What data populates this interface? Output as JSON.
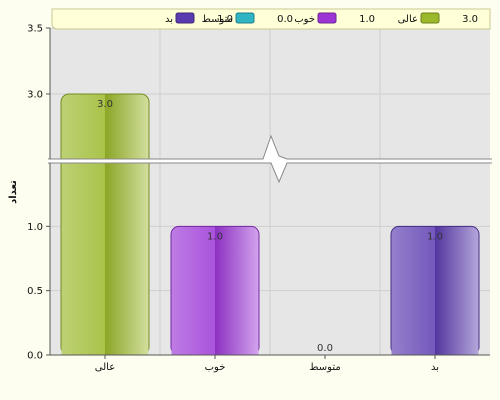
{
  "chart_data": {
    "type": "bar",
    "title": "",
    "xlabel": "",
    "ylabel": "تعداد",
    "categories": [
      "عالی",
      "خوب",
      "متوسط",
      "بد"
    ],
    "values": [
      3.0,
      1.0,
      0.0,
      1.0
    ],
    "value_labels": [
      "3.0",
      "1.0",
      "0.0",
      "1.0"
    ],
    "colors": [
      "#9ab82a",
      "#9b35d6",
      "#2fb4c4",
      "#5b3bb0"
    ],
    "ylim": [
      0,
      3.5
    ],
    "axis_break": {
      "from": 1.5,
      "to": 2.5
    },
    "yticks": [
      0.0,
      0.5,
      1.0,
      3.0,
      3.5
    ],
    "ytick_labels": [
      "0.0",
      "0.5",
      "1.0",
      "3.0",
      "3.5"
    ],
    "grid": true,
    "legend": {
      "position": "top",
      "items": [
        {
          "label": "عالی",
          "value": "3.0",
          "color": "#9ab82a"
        },
        {
          "label": "خوب",
          "value": "1.0",
          "color": "#9b35d6"
        },
        {
          "label": "متوسط",
          "value": "0.0",
          "color": "#2fb4c4"
        },
        {
          "label": "بد",
          "value": "1.0",
          "color": "#5b3bb0"
        }
      ]
    }
  }
}
